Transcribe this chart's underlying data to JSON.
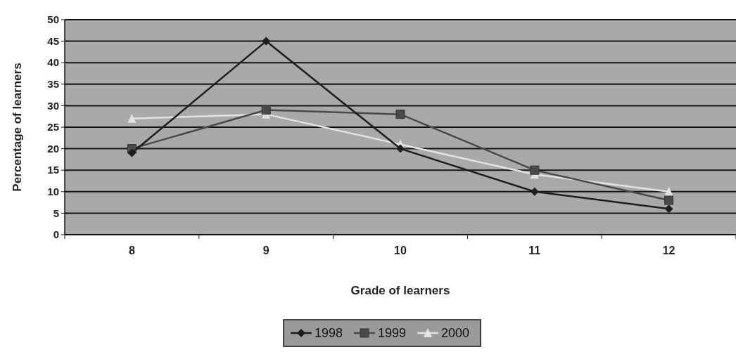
{
  "chart_data": {
    "type": "line",
    "xlabel": "Grade of learners",
    "ylabel": "Percentage of learners",
    "categories": [
      "8",
      "9",
      "10",
      "11",
      "12"
    ],
    "series": [
      {
        "name": "1998",
        "color": "#1e1e1e",
        "marker": "diamond",
        "values": [
          19,
          45,
          20,
          10,
          6
        ]
      },
      {
        "name": "1999",
        "color": "#4a4a4a",
        "marker": "square",
        "values": [
          20,
          29,
          28,
          15,
          8
        ]
      },
      {
        "name": "2000",
        "color": "#e2e2e2",
        "marker": "triangle",
        "values": [
          27,
          28,
          21,
          14,
          10
        ]
      }
    ],
    "ylim": [
      0,
      50
    ],
    "yticks": [
      0,
      5,
      10,
      15,
      20,
      25,
      30,
      35,
      40,
      45,
      50
    ],
    "grid": "y",
    "legend": "bottom"
  }
}
